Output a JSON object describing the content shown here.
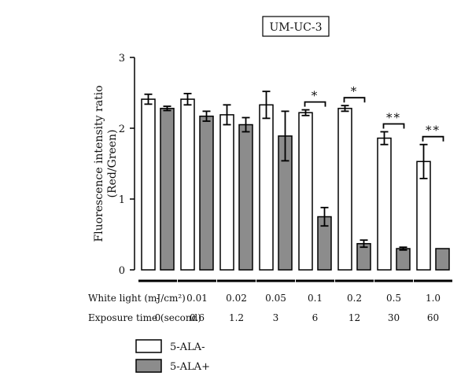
{
  "chart_data": {
    "type": "bar",
    "title": "UM-UC-3",
    "ylabel_line1": "Fluorescence intensity ratio",
    "ylabel_line2": "(Red/Green)",
    "ylim": [
      0,
      3
    ],
    "yticks": [
      "0",
      "1",
      "2",
      "3"
    ],
    "row_labels": {
      "light": "White light (mJ/cm²)",
      "time": "Exposure time (second)"
    },
    "categories_light": [
      "-",
      "0.01",
      "0.02",
      "0.05",
      "0.1",
      "0.2",
      "0.5",
      "1.0"
    ],
    "categories_time": [
      "0",
      "0.6",
      "1.2",
      "3",
      "6",
      "12",
      "30",
      "60"
    ],
    "series": [
      {
        "name": "5-ALA-",
        "color": "#ffffff",
        "values": [
          2.41,
          2.41,
          2.19,
          2.33,
          2.22,
          2.28,
          1.86,
          1.53
        ],
        "errors": [
          0.07,
          0.08,
          0.14,
          0.19,
          0.04,
          0.04,
          0.09,
          0.24
        ]
      },
      {
        "name": "5-ALA+",
        "color": "#8c8c8c",
        "values": [
          2.28,
          2.17,
          2.05,
          1.89,
          0.75,
          0.37,
          0.3,
          0.3
        ],
        "errors": [
          0.03,
          0.07,
          0.1,
          0.35,
          0.13,
          0.05,
          0.02,
          0.0
        ]
      }
    ],
    "significance": [
      {
        "group": 4,
        "label": "*"
      },
      {
        "group": 5,
        "label": "*"
      },
      {
        "group": 6,
        "label": "**"
      },
      {
        "group": 7,
        "label": "**"
      }
    ]
  }
}
